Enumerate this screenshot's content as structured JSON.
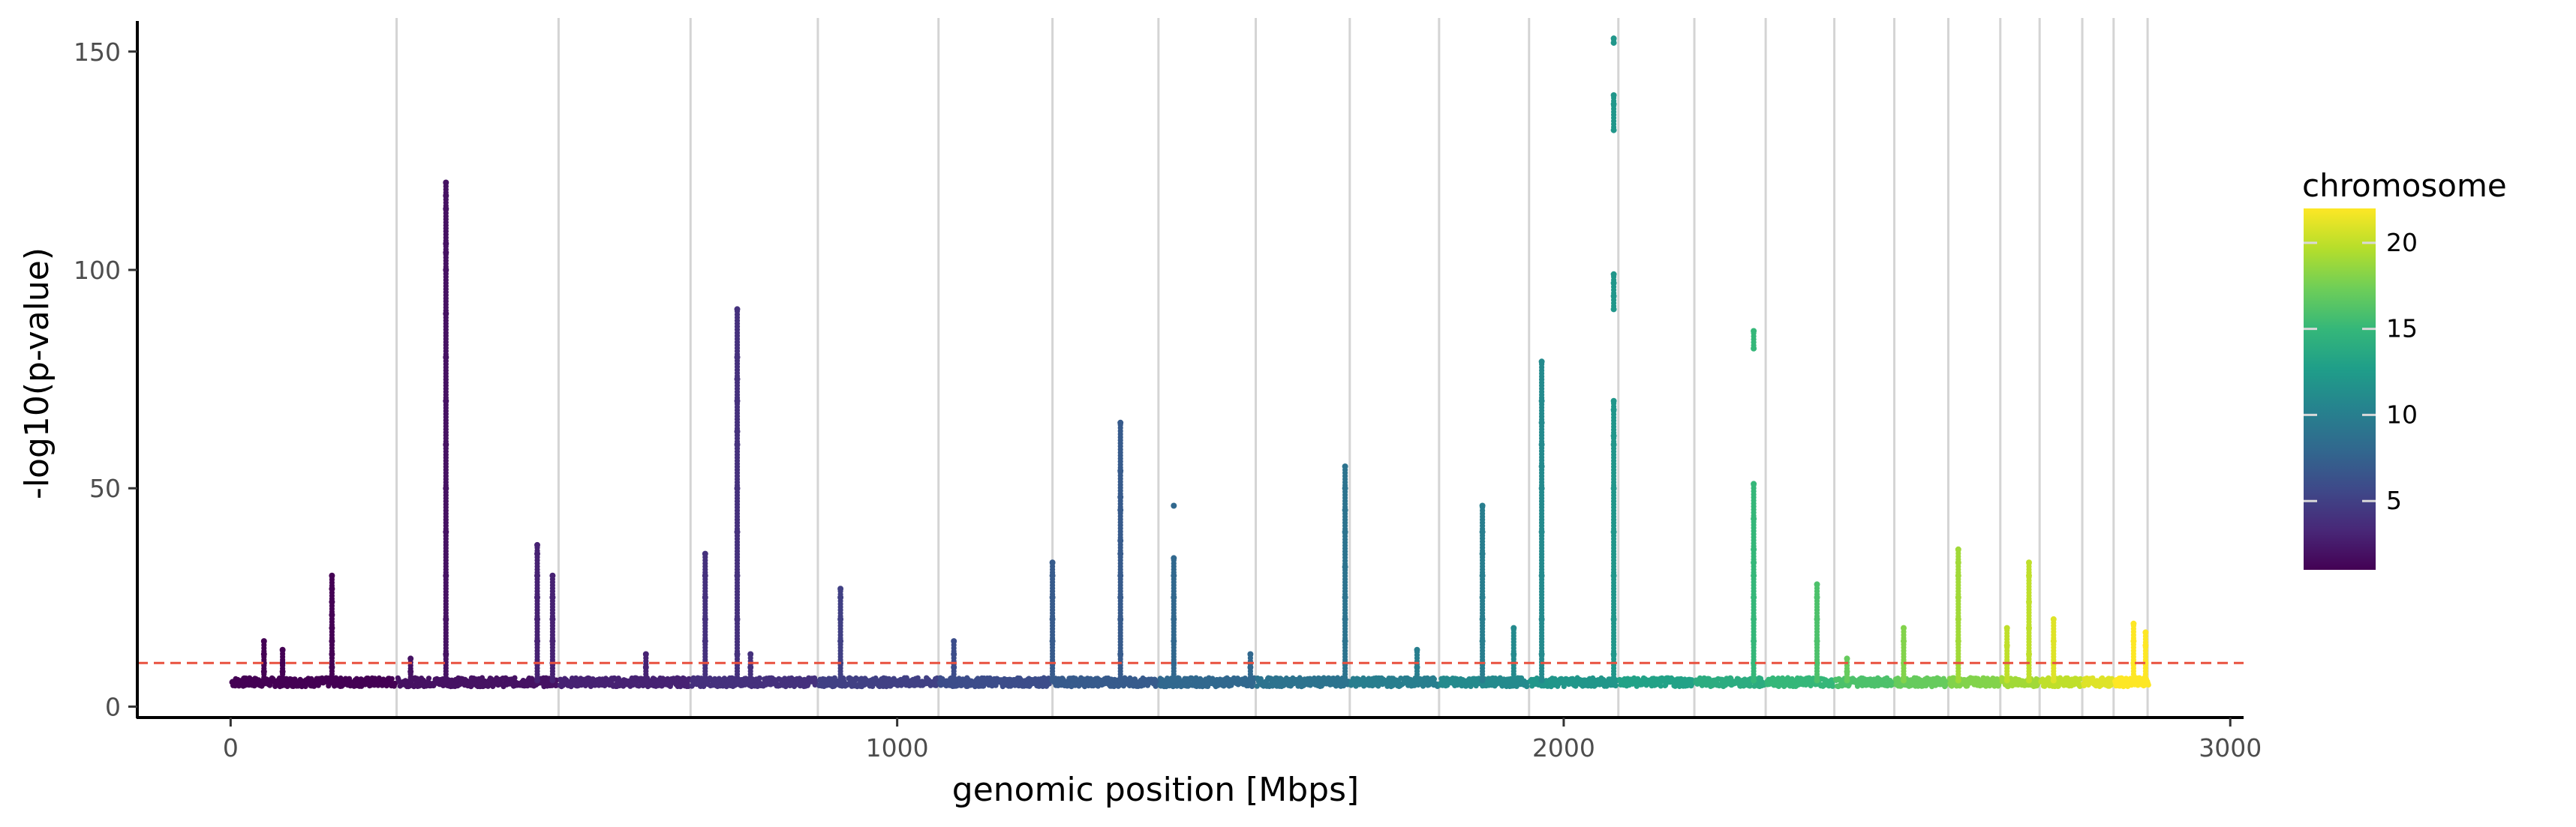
{
  "chart_data": {
    "type": "scatter",
    "title": "",
    "xlabel": "genomic position [Mbps]",
    "ylabel": "-log10(p-value)",
    "xlim": [
      -140,
      3020
    ],
    "ylim": [
      -2.5,
      157
    ],
    "x_ticks": [
      0,
      1000,
      2000,
      3000
    ],
    "x_tick_labels": [
      "0",
      "1000",
      "2000",
      "3000"
    ],
    "y_ticks": [
      0,
      50,
      100,
      150
    ],
    "y_tick_labels": [
      "0",
      "50",
      "100",
      "150"
    ],
    "grid": "vertical lines at chromosome boundaries",
    "chromosome_boundaries": [
      249,
      492,
      690,
      881,
      1062,
      1233,
      1392,
      1538,
      1679,
      1813,
      1948,
      2082,
      2196,
      2303,
      2406,
      2496,
      2577,
      2655,
      2714,
      2778,
      2825,
      2876
    ],
    "significance_line": {
      "y": 10,
      "color": "#e8513f",
      "style": "dashed"
    },
    "point_color": "mapped to chromosome number (viridis colour scale)",
    "colorbar": {
      "title": "chromosome",
      "min": 1,
      "max": 22,
      "ticks": [
        5,
        10,
        15,
        20
      ],
      "tick_labels": [
        "5",
        "10",
        "15",
        "20"
      ],
      "position": "right"
    },
    "peaks": [
      {
        "chromosome": 1,
        "x": 50,
        "values": [
          6,
          8,
          10,
          12,
          15
        ]
      },
      {
        "chromosome": 1,
        "x": 78,
        "values": [
          6,
          8,
          10,
          13
        ]
      },
      {
        "chromosome": 1,
        "x": 152,
        "values": [
          6,
          9,
          12,
          15,
          18,
          21,
          24,
          27,
          30
        ]
      },
      {
        "chromosome": 2,
        "x": 270,
        "values": [
          6,
          8,
          11
        ]
      },
      {
        "chromosome": 2,
        "x": 323,
        "values": [
          6,
          12,
          20,
          30,
          40,
          50,
          60,
          70,
          80,
          90,
          100,
          104,
          106,
          114,
          117,
          120
        ]
      },
      {
        "chromosome": 3,
        "x": 460,
        "values": [
          6,
          10,
          15,
          20,
          25,
          30,
          35,
          37
        ]
      },
      {
        "chromosome": 3,
        "x": 483,
        "values": [
          6,
          10,
          15,
          20,
          25,
          30
        ]
      },
      {
        "chromosome": 3,
        "x": 623,
        "values": [
          6,
          9,
          12
        ]
      },
      {
        "chromosome": 4,
        "x": 712,
        "values": [
          6,
          10,
          15,
          20,
          25,
          30,
          35
        ]
      },
      {
        "chromosome": 4,
        "x": 760,
        "values": [
          6,
          12,
          20,
          30,
          40,
          50,
          60,
          63,
          70,
          75,
          80,
          91
        ]
      },
      {
        "chromosome": 4,
        "x": 780,
        "values": [
          6,
          9,
          12
        ]
      },
      {
        "chromosome": 5,
        "x": 915,
        "values": [
          6,
          10,
          15,
          20,
          25,
          27
        ]
      },
      {
        "chromosome": 6,
        "x": 1085,
        "values": [
          6,
          9,
          12,
          15
        ]
      },
      {
        "chromosome": 7,
        "x": 1233,
        "values": [
          6,
          10,
          15,
          20,
          25,
          30,
          33
        ]
      },
      {
        "chromosome": 7,
        "x": 1335,
        "values": [
          6,
          12,
          20,
          25,
          30,
          35,
          38,
          45,
          48,
          54,
          65
        ]
      },
      {
        "chromosome": 8,
        "x": 1415,
        "values": [
          6,
          10,
          15,
          20,
          25,
          30,
          34,
          46
        ]
      },
      {
        "chromosome": 8,
        "x": 1530,
        "values": [
          6,
          9,
          12
        ]
      },
      {
        "chromosome": 9,
        "x": 1672,
        "values": [
          6,
          10,
          15,
          20,
          25,
          32,
          40,
          45,
          50,
          55
        ]
      },
      {
        "chromosome": 10,
        "x": 1780,
        "values": [
          6,
          9,
          13
        ]
      },
      {
        "chromosome": 10,
        "x": 1878,
        "values": [
          6,
          10,
          15,
          20,
          25,
          30,
          35,
          40,
          46
        ]
      },
      {
        "chromosome": 11,
        "x": 1925,
        "values": [
          6,
          12,
          18
        ]
      },
      {
        "chromosome": 11,
        "x": 1967,
        "values": [
          6,
          12,
          20,
          30,
          40,
          50,
          55,
          60,
          65,
          70,
          79
        ]
      },
      {
        "chromosome": 12,
        "x": 2075,
        "values": [
          6,
          12,
          20,
          30,
          40,
          50,
          60,
          62,
          68,
          70,
          91,
          94,
          97,
          99,
          132,
          138,
          140,
          152,
          153
        ]
      },
      {
        "chromosome": 15,
        "x": 2285,
        "values": [
          6,
          10,
          15,
          20,
          25,
          30,
          33,
          36,
          43,
          51,
          82,
          86
        ]
      },
      {
        "chromosome": 16,
        "x": 2380,
        "values": [
          6,
          10,
          15,
          20,
          25,
          28
        ]
      },
      {
        "chromosome": 17,
        "x": 2425,
        "values": [
          6,
          8,
          11
        ]
      },
      {
        "chromosome": 18,
        "x": 2510,
        "values": [
          6,
          10,
          15,
          18
        ]
      },
      {
        "chromosome": 19,
        "x": 2592,
        "values": [
          6,
          10,
          15,
          20,
          25,
          30,
          33,
          36
        ]
      },
      {
        "chromosome": 20,
        "x": 2665,
        "values": [
          6,
          10,
          14,
          18
        ]
      },
      {
        "chromosome": 20,
        "x": 2698,
        "values": [
          6,
          12,
          18,
          24,
          30,
          33
        ]
      },
      {
        "chromosome": 21,
        "x": 2735,
        "values": [
          6,
          10,
          15,
          20
        ]
      },
      {
        "chromosome": 22,
        "x": 2855,
        "values": [
          6,
          10,
          15,
          19
        ]
      },
      {
        "chromosome": 22,
        "x": 2873,
        "values": [
          6,
          10,
          14,
          17
        ]
      }
    ]
  }
}
